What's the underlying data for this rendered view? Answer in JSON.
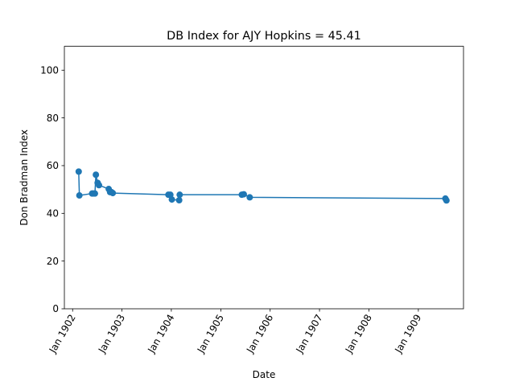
{
  "chart_data": {
    "type": "line",
    "title": "DB Index for AJY Hopkins = 45.41",
    "xlabel": "Date",
    "ylabel": "Don Bradman Index",
    "xlim": [
      "1901-11-01",
      "1909-12-01"
    ],
    "ylim": [
      0,
      110
    ],
    "x_ticks": [
      {
        "date": "1902-01-01",
        "label": "Jan 1902"
      },
      {
        "date": "1903-01-01",
        "label": "Jan 1903"
      },
      {
        "date": "1904-01-01",
        "label": "Jan 1904"
      },
      {
        "date": "1905-01-01",
        "label": "Jan 1905"
      },
      {
        "date": "1906-01-01",
        "label": "Jan 1906"
      },
      {
        "date": "1907-01-01",
        "label": "Jan 1907"
      },
      {
        "date": "1908-01-01",
        "label": "Jan 1908"
      },
      {
        "date": "1909-01-01",
        "label": "Jan 1909"
      }
    ],
    "y_ticks": [
      0,
      20,
      40,
      60,
      80,
      100
    ],
    "grid": false,
    "series": [
      {
        "color": "#1f77b4",
        "x": [
          "1902-02-15",
          "1902-02-20",
          "1902-05-25",
          "1902-06-03",
          "1902-06-15",
          "1902-06-22",
          "1902-07-05",
          "1902-07-15",
          "1902-09-25",
          "1902-10-05",
          "1902-10-15",
          "1902-10-25",
          "1903-12-10",
          "1903-12-25",
          "1904-01-05",
          "1904-02-28",
          "1904-03-03",
          "1905-06-05",
          "1905-06-20",
          "1905-08-03",
          "1909-07-20",
          "1909-07-28"
        ],
        "values": [
          57.5,
          47.5,
          48.3,
          48.3,
          48.3,
          56.2,
          52.8,
          51.8,
          50.2,
          48.9,
          48.9,
          48.5,
          47.8,
          47.8,
          45.8,
          45.5,
          47.8,
          47.8,
          48.0,
          46.7,
          46.2,
          45.41
        ]
      }
    ]
  }
}
